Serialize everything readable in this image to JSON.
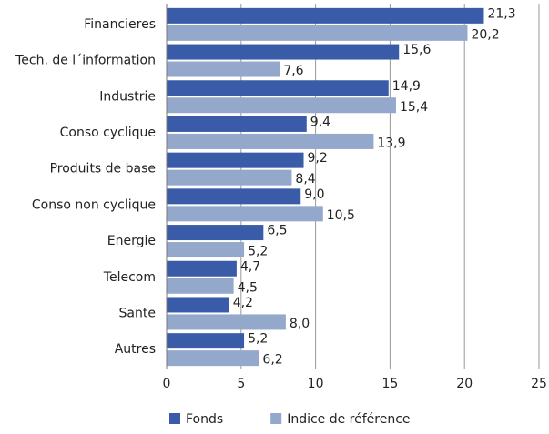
{
  "chart_data": {
    "type": "barh",
    "categories": [
      "Financieres",
      "Tech. de l´information",
      "Industrie",
      "Conso cyclique",
      "Produits de base",
      "Conso non cyclique",
      "Energie",
      "Telecom",
      "Sante",
      "Autres"
    ],
    "series": [
      {
        "name": "Fonds",
        "color": "#3a5ca8",
        "values": [
          21.3,
          15.6,
          14.9,
          9.4,
          9.2,
          9.0,
          6.5,
          4.7,
          4.2,
          5.2
        ],
        "value_labels": [
          "21,3",
          "15,6",
          "14,9",
          "9,4",
          "9,2",
          "9,0",
          "6,5",
          "4,7",
          "4,2",
          "5,2"
        ]
      },
      {
        "name": "Indice de référence",
        "color": "#94a8cc",
        "values": [
          20.2,
          7.6,
          15.4,
          13.9,
          8.4,
          10.5,
          5.2,
          4.5,
          8.0,
          6.2
        ],
        "value_labels": [
          "20,2",
          "7,6",
          "15,4",
          "13,9",
          "8,4",
          "10,5",
          "5,2",
          "4,5",
          "8,0",
          "6,2"
        ]
      }
    ],
    "xlim": [
      0,
      25
    ],
    "xticks": [
      0,
      5,
      10,
      15,
      20,
      25
    ],
    "grid": true,
    "legend": "bottom"
  }
}
